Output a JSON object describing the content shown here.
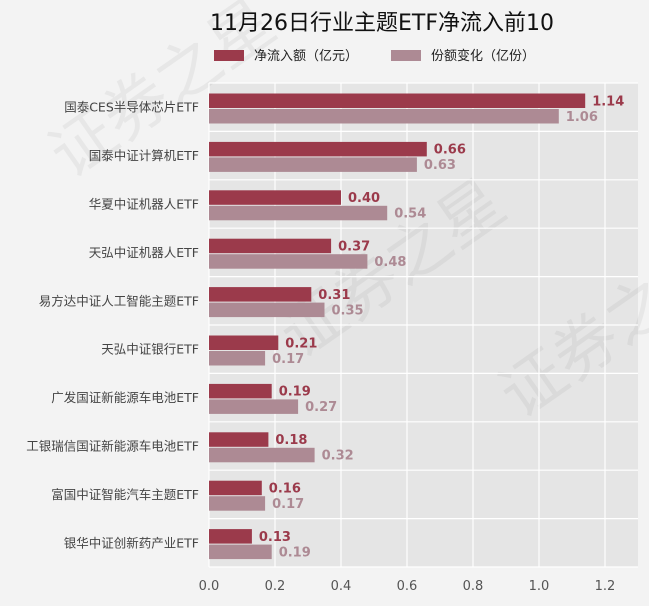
{
  "chart_data": {
    "type": "bar",
    "orientation": "horizontal",
    "title": "11月26日行业主题ETF净流入前10",
    "categories": [
      "国泰CES半导体芯片ETF",
      "国泰中证计算机ETF",
      "华夏中证机器人ETF",
      "天弘中证机器人ETF",
      "易方达中证人工智能主题ETF",
      "天弘中证银行ETF",
      "广发国证新能源车电池ETF",
      "工银瑞信国证新能源车电池ETF",
      "富国中证智能汽车主题ETF",
      "银华中证创新药产业ETF"
    ],
    "series": [
      {
        "name": "净流入额（亿元）",
        "color": "#9b3a4b",
        "values": [
          1.14,
          0.66,
          0.4,
          0.37,
          0.31,
          0.21,
          0.19,
          0.18,
          0.16,
          0.13
        ],
        "labels": [
          "1.14",
          "0.66",
          "0.40",
          "0.37",
          "0.31",
          "0.21",
          "0.19",
          "0.18",
          "0.16",
          "0.13"
        ]
      },
      {
        "name": "份额变化（亿份）",
        "color": "#ad8a94",
        "values": [
          1.06,
          0.63,
          0.54,
          0.48,
          0.35,
          0.17,
          0.27,
          0.32,
          0.17,
          0.19
        ],
        "labels": [
          "1.06",
          "0.63",
          "0.54",
          "0.48",
          "0.35",
          "0.17",
          "0.27",
          "0.32",
          "0.17",
          "0.19"
        ]
      }
    ],
    "xlim": [
      0,
      1.3
    ],
    "xticks": [
      "0.0",
      "0.2",
      "0.4",
      "0.6",
      "0.8",
      "1.0",
      "1.2"
    ],
    "grid": true,
    "legend_position": "top",
    "watermark": "证券之星"
  }
}
